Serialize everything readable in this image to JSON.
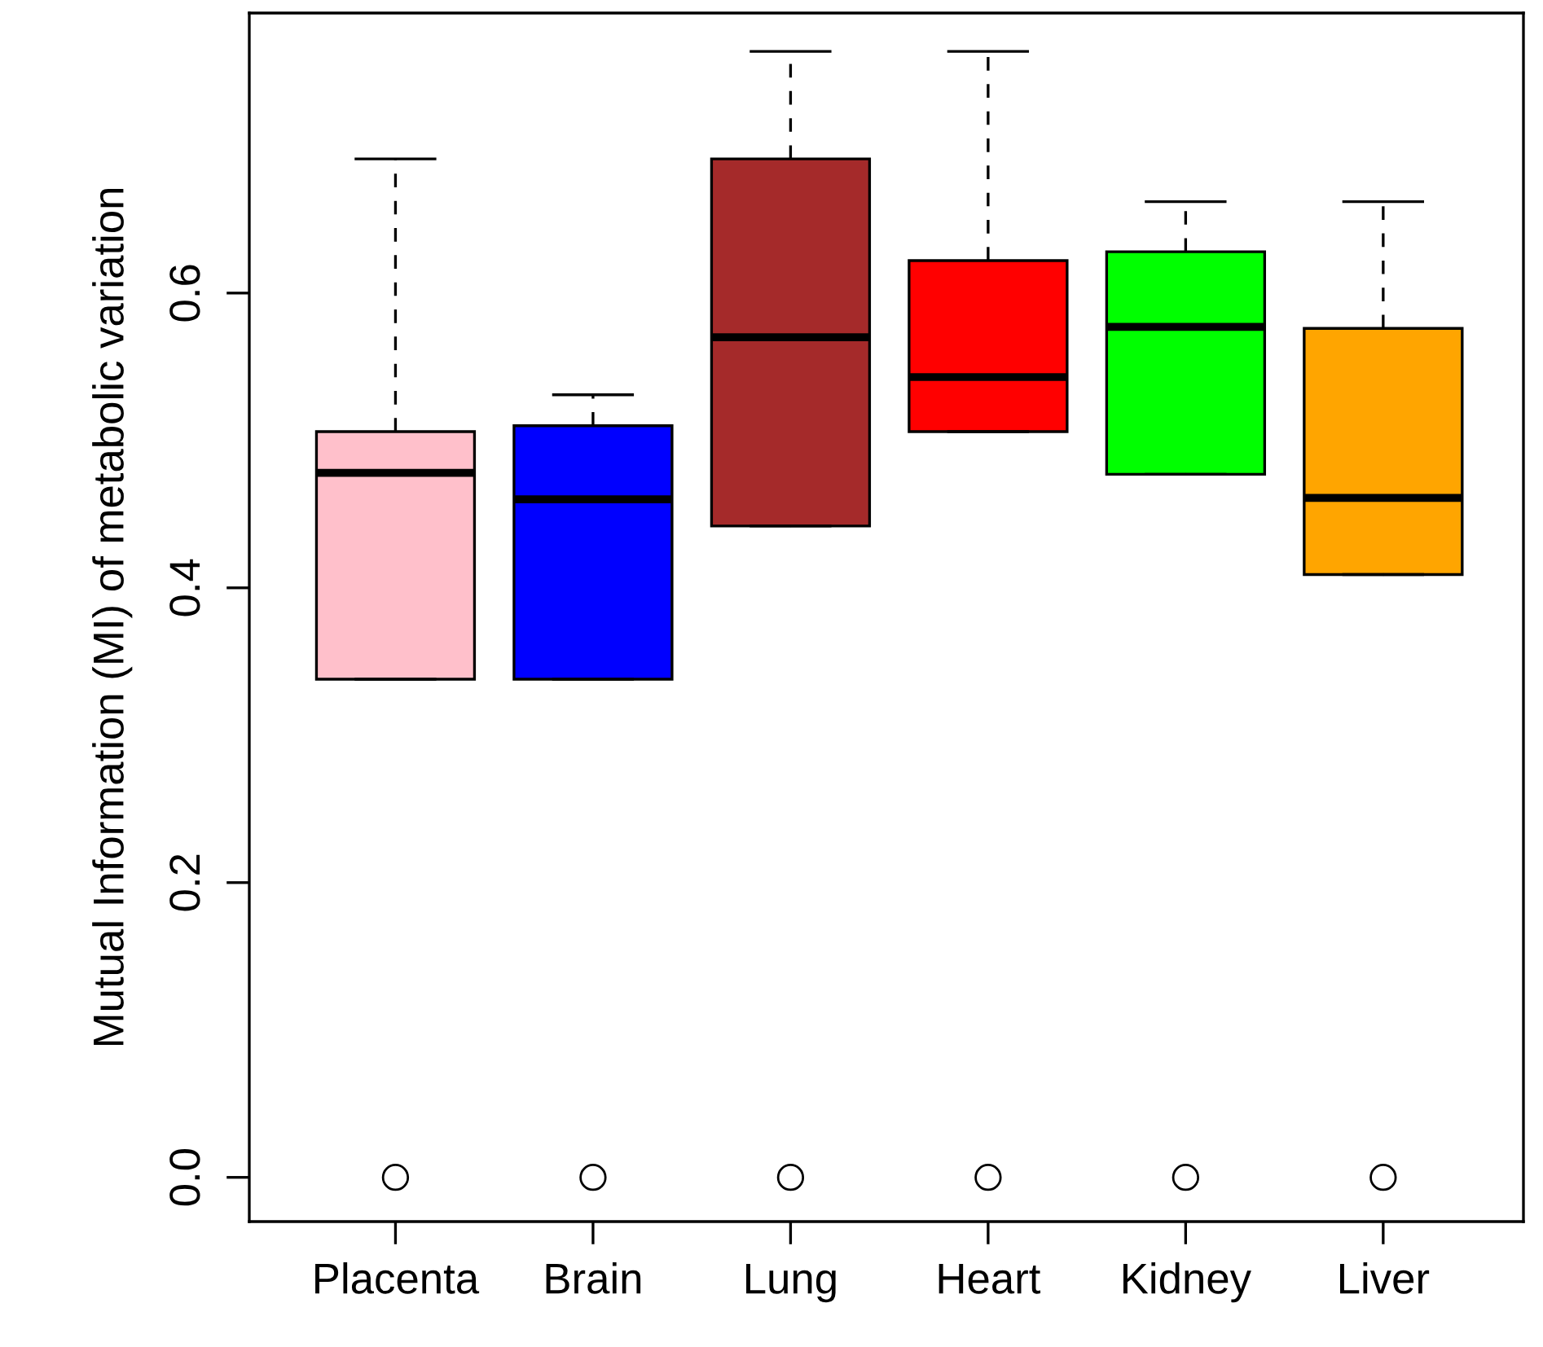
{
  "chart_data": {
    "type": "box",
    "ylabel": "Mutual Information (MI) of metabolic variation",
    "categories": [
      "Placenta",
      "Brain",
      "Lung",
      "Heart",
      "Kidney",
      "Liver"
    ],
    "colors": [
      "#ffc0cb",
      "#0000ff",
      "#a52a2a",
      "#ff0000",
      "#00ff00",
      "#ffa500"
    ],
    "boxes": [
      {
        "low": 0.338,
        "q1": 0.338,
        "median": 0.478,
        "q3": 0.506,
        "high": 0.691,
        "outliers": [
          0
        ]
      },
      {
        "low": 0.338,
        "q1": 0.338,
        "median": 0.46,
        "q3": 0.51,
        "high": 0.531,
        "outliers": [
          0
        ]
      },
      {
        "low": 0.442,
        "q1": 0.442,
        "median": 0.57,
        "q3": 0.691,
        "high": 0.764,
        "outliers": [
          0
        ]
      },
      {
        "low": 0.506,
        "q1": 0.506,
        "median": 0.543,
        "q3": 0.622,
        "high": 0.764,
        "outliers": [
          0
        ]
      },
      {
        "low": 0.477,
        "q1": 0.477,
        "median": 0.577,
        "q3": 0.628,
        "high": 0.662,
        "outliers": [
          0
        ]
      },
      {
        "low": 0.409,
        "q1": 0.409,
        "median": 0.461,
        "q3": 0.576,
        "high": 0.662,
        "outliers": [
          0
        ]
      }
    ],
    "ylim": [
      -0.03,
      0.79
    ],
    "yticks": [
      {
        "value": 0,
        "label": "0.0"
      },
      {
        "value": 0.2,
        "label": "0.2"
      },
      {
        "value": 0.4,
        "label": "0.4"
      },
      {
        "value": 0.6,
        "label": "0.6"
      }
    ],
    "grid": false
  }
}
